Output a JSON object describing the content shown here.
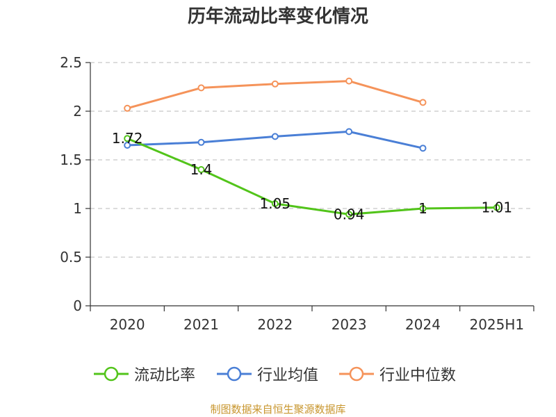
{
  "chart_data": {
    "type": "line",
    "title": "历年流动比率变化情况",
    "categories": [
      "2020",
      "2021",
      "2022",
      "2023",
      "2024",
      "2025H1"
    ],
    "ylim": [
      0,
      2.5
    ],
    "yticks": [
      "0",
      "0.5",
      "1",
      "1.5",
      "2",
      "2.5"
    ],
    "grid": true,
    "legend_position": "bottom",
    "series": [
      {
        "name": "流动比率",
        "color": "#52c41a",
        "values": [
          1.72,
          1.4,
          1.05,
          0.94,
          1,
          1.01
        ],
        "labels": [
          "1.72",
          "1.4",
          "1.05",
          "0.94",
          "1",
          "1.01"
        ],
        "show_labels": true
      },
      {
        "name": "行业均值",
        "color": "#4a7fd6",
        "values": [
          1.65,
          1.68,
          1.74,
          1.79,
          1.62,
          null
        ],
        "show_labels": false
      },
      {
        "name": "行业中位数",
        "color": "#f5935a",
        "values": [
          2.03,
          2.24,
          2.28,
          2.31,
          2.09,
          null
        ],
        "show_labels": false
      }
    ]
  },
  "source_text": "制图数据来自恒生聚源数据库"
}
